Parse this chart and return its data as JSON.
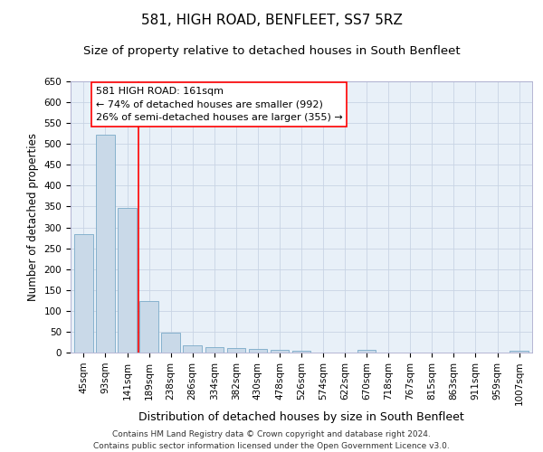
{
  "title": "581, HIGH ROAD, BENFLEET, SS7 5RZ",
  "subtitle": "Size of property relative to detached houses in South Benfleet",
  "xlabel": "Distribution of detached houses by size in South Benfleet",
  "ylabel": "Number of detached properties",
  "footer_line1": "Contains HM Land Registry data © Crown copyright and database right 2024.",
  "footer_line2": "Contains public sector information licensed under the Open Government Licence v3.0.",
  "categories": [
    "45sqm",
    "93sqm",
    "141sqm",
    "189sqm",
    "238sqm",
    "286sqm",
    "334sqm",
    "382sqm",
    "430sqm",
    "478sqm",
    "526sqm",
    "574sqm",
    "622sqm",
    "670sqm",
    "718sqm",
    "767sqm",
    "815sqm",
    "863sqm",
    "911sqm",
    "959sqm",
    "1007sqm"
  ],
  "values": [
    283,
    522,
    347,
    123,
    48,
    17,
    13,
    10,
    8,
    7,
    5,
    0,
    0,
    7,
    0,
    0,
    0,
    0,
    0,
    0,
    5
  ],
  "bar_color": "#c9d9e8",
  "bar_edge_color": "#7aaac8",
  "red_line_x": 2.5,
  "annotation_box_text": "581 HIGH ROAD: 161sqm\n← 74% of detached houses are smaller (992)\n26% of semi-detached houses are larger (355) →",
  "ylim": [
    0,
    650
  ],
  "yticks": [
    0,
    50,
    100,
    150,
    200,
    250,
    300,
    350,
    400,
    450,
    500,
    550,
    600,
    650
  ],
  "title_fontsize": 11,
  "subtitle_fontsize": 9.5,
  "xlabel_fontsize": 9,
  "ylabel_fontsize": 8.5,
  "tick_fontsize": 7.5,
  "footer_fontsize": 6.5,
  "annotation_fontsize": 8,
  "background_color": "#ffffff",
  "ax_background_color": "#e8f0f8",
  "grid_color": "#c8d4e4"
}
